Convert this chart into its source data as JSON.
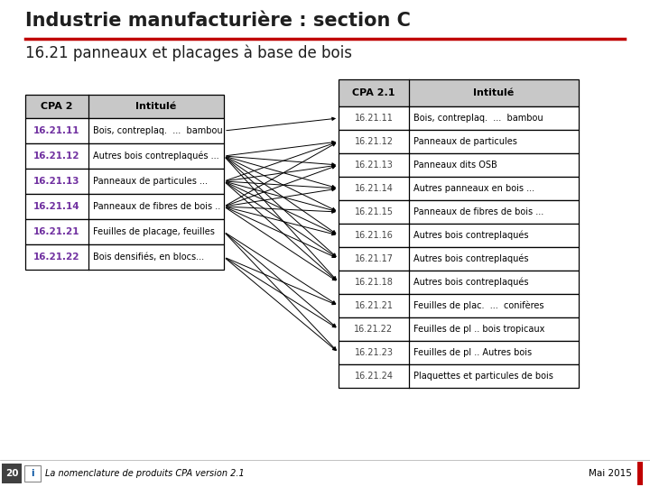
{
  "title": "Industrie manufacturière : section C",
  "subtitle": "16.21 panneaux et placages à base de bois",
  "left_table": {
    "headers": [
      "CPA 2",
      "Intitulé"
    ],
    "rows": [
      [
        "16.21.11",
        "Bois, contreplaq.  ...  bambou"
      ],
      [
        "16.21.12",
        "Autres bois contreplaqués ..."
      ],
      [
        "16.21.13",
        "Panneaux de particules ..."
      ],
      [
        "16.21.14",
        "Panneaux de fibres de bois .."
      ],
      [
        "16.21.21",
        "Feuilles de placage, feuilles"
      ],
      [
        "16.21.22",
        "Bois densifiés, en blocs..."
      ]
    ]
  },
  "right_table": {
    "headers": [
      "CPA 2.1",
      "Intitulé"
    ],
    "rows": [
      [
        "16.21.11",
        "Bois, contreplaq.  ...  bambou"
      ],
      [
        "16.21.12",
        "Panneaux de particules"
      ],
      [
        "16.21.13",
        "Panneaux dits OSB"
      ],
      [
        "16.21.14",
        "Autres panneaux en bois ..."
      ],
      [
        "16.21.15",
        "Panneaux de fibres de bois ..."
      ],
      [
        "16.21.16",
        "Autres bois contreplaqués"
      ],
      [
        "16.21.17",
        "Autres bois contreplaqués"
      ],
      [
        "16.21.18",
        "Autres bois contreplaqués"
      ],
      [
        "16.21.21",
        "Feuilles de plac.  ...  conifères"
      ],
      [
        "16.21.22",
        "Feuilles de pl .. bois tropicaux"
      ],
      [
        "16.21.23",
        "Feuilles de pl .. Autres bois"
      ],
      [
        "16.21.24",
        "Plaquettes et particules de bois"
      ]
    ]
  },
  "connections": [
    [
      0,
      [
        0
      ]
    ],
    [
      1,
      [
        1,
        2,
        3,
        4,
        5,
        6,
        7
      ]
    ],
    [
      2,
      [
        1,
        2,
        3,
        4,
        5,
        6,
        7
      ]
    ],
    [
      3,
      [
        1,
        2,
        3,
        4,
        5,
        6,
        7
      ]
    ],
    [
      4,
      [
        8,
        9,
        10
      ]
    ],
    [
      5,
      [
        8,
        9,
        10
      ]
    ]
  ],
  "purple_color": "#7030A0",
  "header_bg": "#C8C8C8",
  "title_color": "#1F1F1F",
  "red_line_color": "#C00000",
  "footer_text": "La nomenclature de produits CPA version 2.1",
  "footer_page": "20",
  "footer_date": "Mai 2015",
  "footer_red_bar": "#C00000",
  "bg_color": "#FFFFFF"
}
